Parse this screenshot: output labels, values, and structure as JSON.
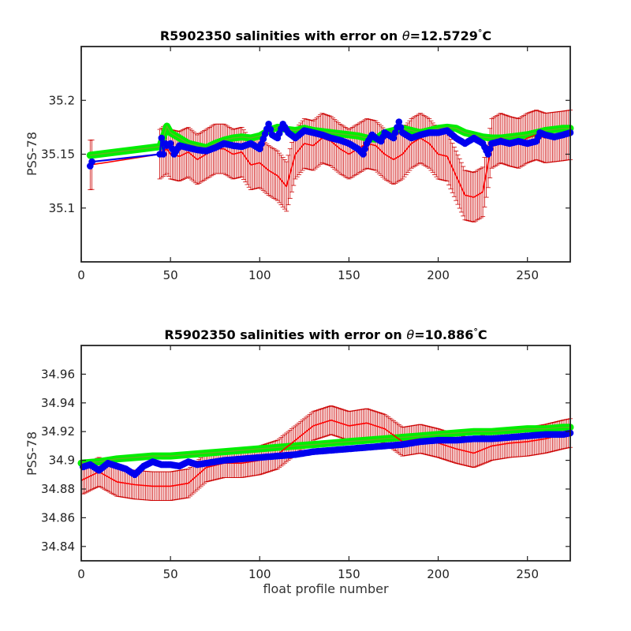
{
  "chart_data": [
    {
      "type": "line",
      "title_prefix": "R5902350 salinities with error on ",
      "theta_symbol": "θ",
      "title_value": "=12.5729",
      "degree_symbol": "°",
      "title_unit": "C",
      "xlabel": "",
      "ylabel": "PSS-78",
      "xlim": [
        0,
        274
      ],
      "ylim": [
        35.05,
        35.25
      ],
      "xticks": [
        0,
        50,
        100,
        150,
        200,
        250
      ],
      "yticks": [
        35.1,
        35.15,
        35.2
      ],
      "grid": false,
      "colors": {
        "mapped": "#00ee00",
        "mapped_fill": "#88a030",
        "measured": "#ff0000",
        "errorbar": "#cc0000",
        "calibrated": "#0000ee"
      },
      "error_half_width": 0.023,
      "mapped": {
        "x": [
          5,
          44,
          46,
          48,
          50,
          55,
          60,
          65,
          70,
          75,
          80,
          85,
          90,
          95,
          100,
          105,
          110,
          115,
          120,
          125,
          130,
          135,
          140,
          145,
          150,
          155,
          160,
          165,
          170,
          175,
          180,
          185,
          190,
          195,
          200,
          205,
          210,
          215,
          220,
          225,
          230,
          235,
          240,
          245,
          250,
          255,
          260,
          265,
          270,
          274
        ],
        "y": [
          35.149,
          35.157,
          35.166,
          35.176,
          35.17,
          35.165,
          35.16,
          35.158,
          35.156,
          35.16,
          35.163,
          35.165,
          35.166,
          35.165,
          35.167,
          35.172,
          35.175,
          35.173,
          35.172,
          35.174,
          35.172,
          35.171,
          35.17,
          35.169,
          35.168,
          35.167,
          35.165,
          35.164,
          35.17,
          35.172,
          35.174,
          35.172,
          35.17,
          35.172,
          35.174,
          35.175,
          35.174,
          35.17,
          35.168,
          35.166,
          35.165,
          35.165,
          35.166,
          35.167,
          35.168,
          35.17,
          35.172,
          35.173,
          35.174,
          35.174
        ]
      },
      "measured": {
        "x": [
          5,
          44,
          48,
          50,
          55,
          60,
          65,
          70,
          75,
          80,
          85,
          90,
          95,
          100,
          105,
          110,
          115,
          120,
          125,
          130,
          135,
          140,
          145,
          150,
          155,
          160,
          165,
          170,
          175,
          180,
          185,
          190,
          195,
          200,
          205,
          210,
          215,
          220,
          225,
          230,
          235,
          240,
          245,
          250,
          255,
          260,
          265,
          270,
          274
        ],
        "y": [
          35.14,
          35.15,
          35.155,
          35.15,
          35.148,
          35.152,
          35.145,
          35.15,
          35.155,
          35.155,
          35.15,
          35.152,
          35.14,
          35.142,
          35.135,
          35.13,
          35.12,
          35.15,
          35.16,
          35.158,
          35.165,
          35.162,
          35.155,
          35.15,
          35.155,
          35.16,
          35.158,
          35.15,
          35.145,
          35.15,
          35.16,
          35.165,
          35.16,
          35.15,
          35.148,
          35.13,
          35.112,
          35.11,
          35.115,
          35.16,
          35.165,
          35.162,
          35.16,
          35.165,
          35.168,
          35.165,
          35.166,
          35.167,
          35.168
        ]
      },
      "calibrated": {
        "x": [
          5,
          6,
          44,
          45,
          46,
          47,
          48,
          50,
          52,
          55,
          60,
          65,
          70,
          75,
          80,
          85,
          90,
          95,
          100,
          105,
          107,
          110,
          113,
          116,
          120,
          125,
          130,
          135,
          140,
          145,
          150,
          155,
          158,
          160,
          163,
          165,
          168,
          170,
          175,
          178,
          180,
          185,
          190,
          195,
          200,
          205,
          210,
          215,
          220,
          225,
          228,
          230,
          235,
          240,
          245,
          250,
          255,
          257,
          260,
          265,
          270,
          274
        ],
        "y": [
          35.139,
          35.143,
          35.15,
          35.165,
          35.15,
          35.16,
          35.158,
          35.16,
          35.15,
          35.158,
          35.156,
          35.154,
          35.153,
          35.156,
          35.16,
          35.158,
          35.157,
          35.16,
          35.155,
          35.178,
          35.168,
          35.165,
          35.178,
          35.17,
          35.165,
          35.172,
          35.17,
          35.168,
          35.165,
          35.163,
          35.16,
          35.155,
          35.15,
          35.16,
          35.168,
          35.165,
          35.162,
          35.17,
          35.165,
          35.18,
          35.17,
          35.165,
          35.168,
          35.17,
          35.17,
          35.172,
          35.165,
          35.16,
          35.165,
          35.16,
          35.15,
          35.16,
          35.162,
          35.16,
          35.162,
          35.16,
          35.162,
          35.17,
          35.168,
          35.166,
          35.168,
          35.17
        ]
      }
    },
    {
      "type": "line",
      "title_prefix": "R5902350 salinities with error on ",
      "theta_symbol": "θ",
      "title_value": "=10.886",
      "degree_symbol": "°",
      "title_unit": "C",
      "xlabel": "float profile number",
      "ylabel": "PSS-78",
      "xlim": [
        0,
        274
      ],
      "ylim": [
        34.83,
        34.98
      ],
      "xticks": [
        0,
        50,
        100,
        150,
        200,
        250
      ],
      "yticks": [
        34.84,
        34.86,
        34.88,
        34.9,
        34.92,
        34.94,
        34.96
      ],
      "grid": false,
      "colors": {
        "mapped": "#00ee00",
        "mapped_fill": "#88a030",
        "measured": "#ff0000",
        "errorbar": "#cc0000",
        "calibrated": "#0000ee"
      },
      "error_half_width": 0.01,
      "mapped": {
        "x": [
          0,
          10,
          20,
          30,
          40,
          50,
          60,
          70,
          80,
          90,
          100,
          110,
          120,
          130,
          140,
          150,
          160,
          170,
          180,
          190,
          200,
          210,
          220,
          230,
          240,
          250,
          260,
          270,
          274
        ],
        "y": [
          34.898,
          34.899,
          34.901,
          34.902,
          34.903,
          34.903,
          34.904,
          34.905,
          34.906,
          34.907,
          34.908,
          34.909,
          34.91,
          34.911,
          34.912,
          34.913,
          34.914,
          34.915,
          34.916,
          34.917,
          34.918,
          34.919,
          34.92,
          34.92,
          34.921,
          34.922,
          34.922,
          34.923,
          34.923
        ]
      },
      "measured": {
        "x": [
          0,
          10,
          20,
          30,
          40,
          50,
          60,
          70,
          80,
          90,
          100,
          110,
          120,
          130,
          140,
          150,
          160,
          170,
          180,
          190,
          200,
          210,
          220,
          230,
          240,
          250,
          260,
          270,
          274
        ],
        "y": [
          34.886,
          34.892,
          34.885,
          34.883,
          34.882,
          34.882,
          34.884,
          34.895,
          34.898,
          34.898,
          34.9,
          34.904,
          34.914,
          34.924,
          34.928,
          34.924,
          34.926,
          34.922,
          34.913,
          34.915,
          34.912,
          34.908,
          34.905,
          34.91,
          34.912,
          34.913,
          34.915,
          34.918,
          34.919
        ]
      },
      "calibrated": {
        "x": [
          0,
          5,
          10,
          15,
          20,
          25,
          30,
          35,
          40,
          45,
          50,
          55,
          60,
          65,
          70,
          75,
          80,
          90,
          100,
          110,
          120,
          130,
          140,
          150,
          160,
          170,
          180,
          190,
          200,
          210,
          220,
          230,
          240,
          250,
          260,
          270,
          274
        ],
        "y": [
          34.895,
          34.897,
          34.893,
          34.898,
          34.896,
          34.894,
          34.89,
          34.896,
          34.899,
          34.897,
          34.897,
          34.896,
          34.899,
          34.897,
          34.898,
          34.899,
          34.9,
          34.901,
          34.902,
          34.903,
          34.904,
          34.906,
          34.907,
          34.908,
          34.909,
          34.91,
          34.911,
          34.913,
          34.914,
          34.914,
          34.915,
          34.915,
          34.916,
          34.917,
          34.918,
          34.918,
          34.919
        ]
      }
    }
  ]
}
